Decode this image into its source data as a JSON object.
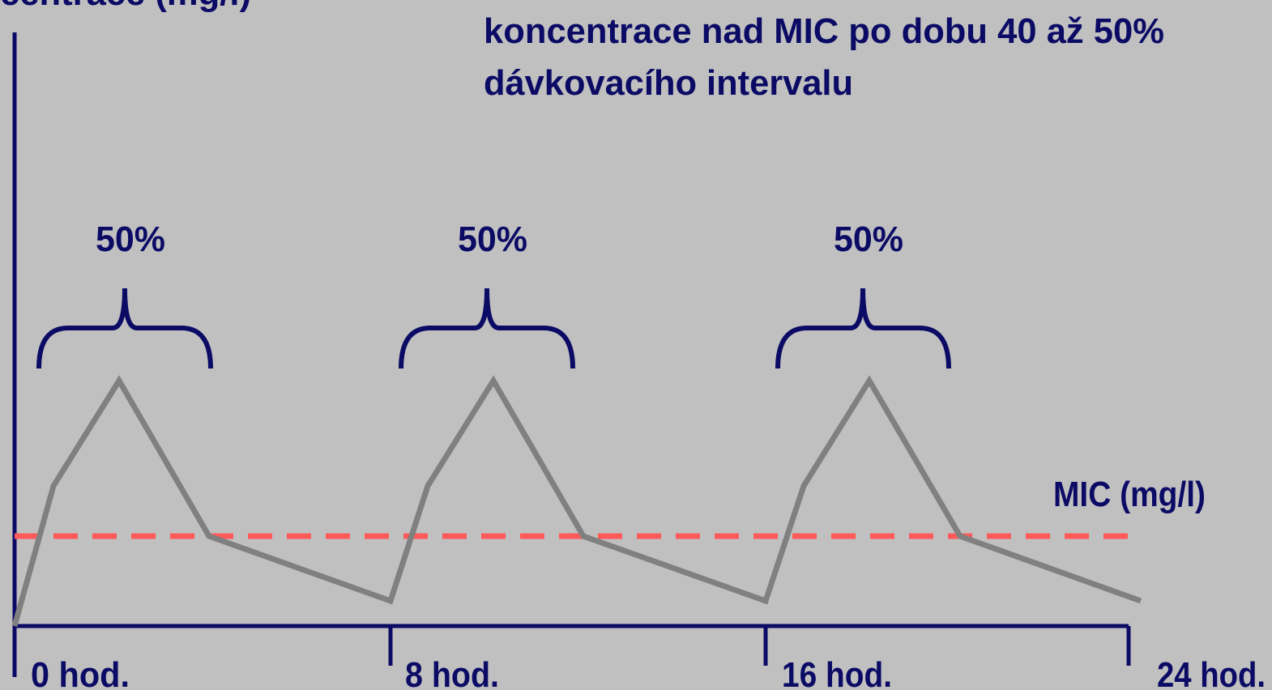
{
  "axis_label": "centrace (mg/l)",
  "title": [
    "koncentrace nad MIC po dobu 40 až 50%",
    "dávkovacího intervalu"
  ],
  "interval_labels": [
    "50%",
    "50%",
    "50%"
  ],
  "mic_label": "MIC (mg/l)",
  "time_labels": [
    "0 hod.",
    "8 hod.",
    "16 hod.",
    "24 hod."
  ]
}
